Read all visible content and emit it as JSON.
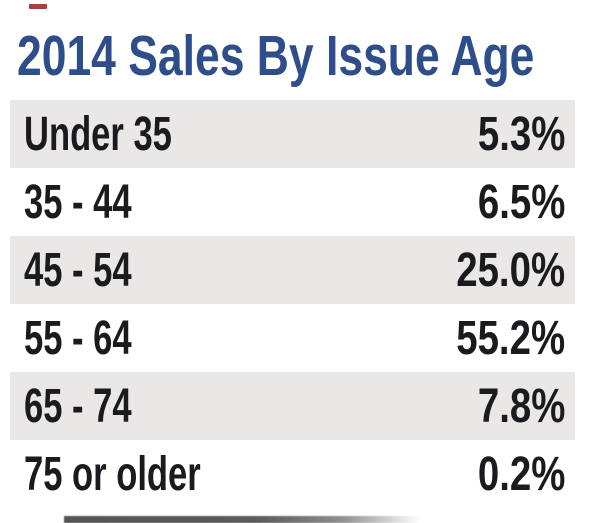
{
  "page": {
    "title": "2014 Sales By Issue Age"
  },
  "table": {
    "rows": [
      {
        "label": "Under 35",
        "value": "5.3%"
      },
      {
        "label": "35 - 44",
        "value": "6.5%"
      },
      {
        "label": "45 - 54",
        "value": "25.0%"
      },
      {
        "label": "55 - 64",
        "value": "55.2%"
      },
      {
        "label": "65 - 74",
        "value": "7.8%"
      },
      {
        "label": "75 or older",
        "value": "0.2%"
      }
    ]
  },
  "chart_data": {
    "type": "table",
    "title": "2014 Sales By Issue Age",
    "categories": [
      "Under 35",
      "35 - 44",
      "45 - 54",
      "55 - 64",
      "65 - 74",
      "75 or older"
    ],
    "values": [
      5.3,
      6.5,
      25.0,
      55.2,
      7.8,
      0.2
    ],
    "unit": "%",
    "layout": "two-column table, zebra striping on rows 1/3/5, values right-aligned"
  },
  "colors": {
    "title": "#2e4d8b",
    "row_text": "#1b1b1f",
    "stripe": "#e9e8e6",
    "background": "#ffffff",
    "accent_dash": "#a8403c"
  }
}
